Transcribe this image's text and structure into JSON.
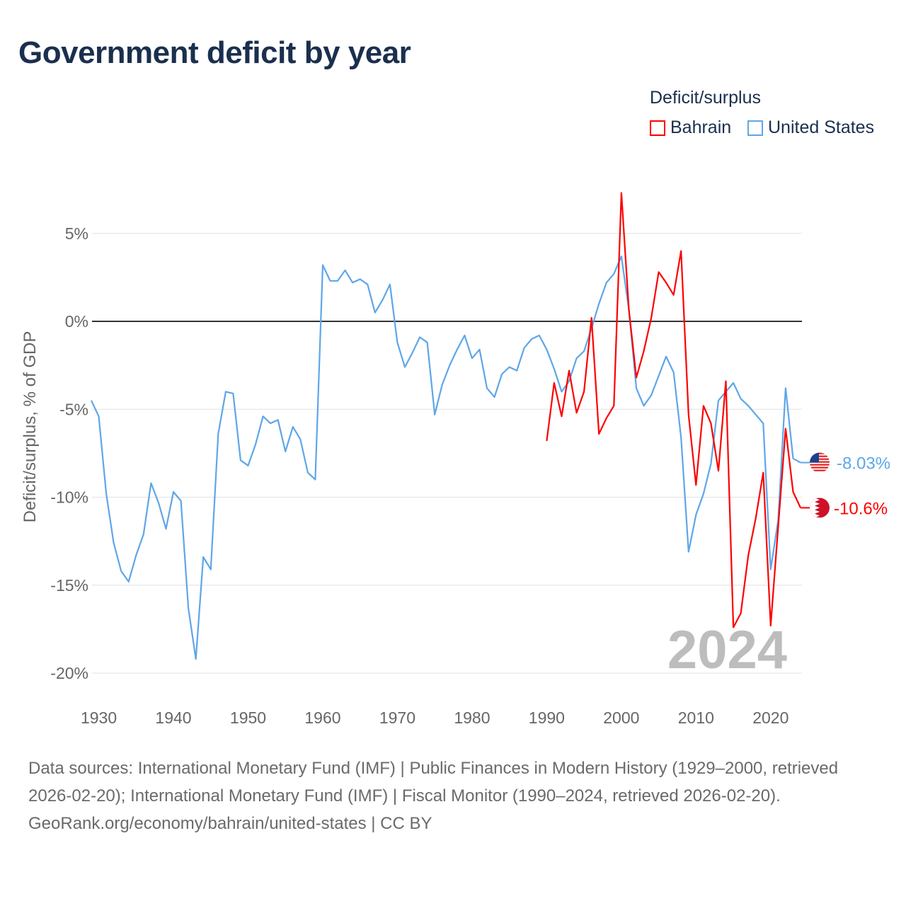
{
  "title": "Government deficit by year",
  "legend": {
    "title": "Deficit/surplus",
    "placement": "top-right"
  },
  "footer": {
    "sources": "Data sources: International Monetary Fund (IMF) | Public Finances in Modern History (1929–2000, retrieved 2026-02-20); International Monetary Fund (IMF) | Fiscal Monitor (1990–2024, retrieved 2026-02-20).",
    "credit": "GeoRank.org/economy/bahrain/united-states | CC BY"
  },
  "chart_data": {
    "type": "line",
    "title": "Government deficit by year",
    "xlabel": "",
    "ylabel": "Deficit/surplus, % of GDP",
    "xlim": [
      1929,
      2024
    ],
    "ylim": [
      -20.5,
      7.5
    ],
    "grid": true,
    "year_watermark": "2024",
    "x_ticks": [
      1930,
      1940,
      1950,
      1960,
      1970,
      1980,
      1990,
      2000,
      2010,
      2020
    ],
    "x_tick_labels": [
      "1930",
      "1940",
      "1950",
      "1960",
      "1970",
      "1980",
      "1990",
      "2000",
      "2010",
      "2020"
    ],
    "y_ticks": [
      5,
      0,
      -5,
      -10,
      -15,
      -20
    ],
    "y_tick_labels": [
      "5%",
      "0%",
      "-5%",
      "-10%",
      "-15%",
      "-20%"
    ],
    "series": [
      {
        "name": "United States",
        "color": "#5ea6e8",
        "flag": "us-flag",
        "end_label": "-8.03%",
        "start_year": 1929,
        "values": [
          -4.5,
          -5.4,
          -9.8,
          -12.6,
          -14.2,
          -14.8,
          -13.3,
          -12.1,
          -9.2,
          -10.3,
          -11.8,
          -9.7,
          -10.2,
          -16.3,
          -19.2,
          -13.4,
          -14.1,
          -6.4,
          -4.0,
          -4.1,
          -7.9,
          -8.2,
          -7.0,
          -5.4,
          -5.8,
          -5.6,
          -7.4,
          -6.0,
          -6.7,
          -8.6,
          -9.0,
          3.2,
          2.3,
          2.3,
          2.9,
          2.2,
          2.4,
          2.1,
          0.5,
          1.2,
          2.1,
          -1.2,
          -2.6,
          -1.8,
          -0.9,
          -1.2,
          -5.3,
          -3.6,
          -2.5,
          -1.6,
          -0.8,
          -2.1,
          -1.6,
          -3.8,
          -4.3,
          -3.0,
          -2.6,
          -2.8,
          -1.5,
          -1.0,
          -0.8,
          -1.6,
          -2.7,
          -4.0,
          -3.4,
          -2.1,
          -1.7,
          -0.4,
          1.0,
          2.2,
          2.7,
          3.7,
          0.7,
          -3.8,
          -4.8,
          -4.2,
          -3.1,
          -2.0,
          -2.9,
          -6.6,
          -13.1,
          -11.0,
          -9.8,
          -8.1,
          -4.5,
          -4.0,
          -3.5,
          -4.4,
          -4.8,
          -5.3,
          -5.8,
          -14.1,
          -11.3,
          -3.8,
          -7.8,
          -8.03
        ]
      },
      {
        "name": "Bahrain",
        "color": "#ff0000",
        "flag": "bahrain-flag",
        "end_label": "-10.6%",
        "start_year": 1990,
        "values": [
          -6.8,
          -3.5,
          -5.4,
          -2.8,
          -5.2,
          -4.0,
          0.2,
          -6.4,
          -5.5,
          -4.8,
          7.3,
          0.7,
          -3.2,
          -1.7,
          0.2,
          2.8,
          2.2,
          1.5,
          4.0,
          -5.3,
          -9.3,
          -4.8,
          -5.8,
          -8.5,
          -3.4,
          -17.4,
          -16.6,
          -13.3,
          -11.2,
          -8.6,
          -17.3,
          -11.7,
          -6.1,
          -9.7,
          -10.6
        ]
      }
    ]
  }
}
